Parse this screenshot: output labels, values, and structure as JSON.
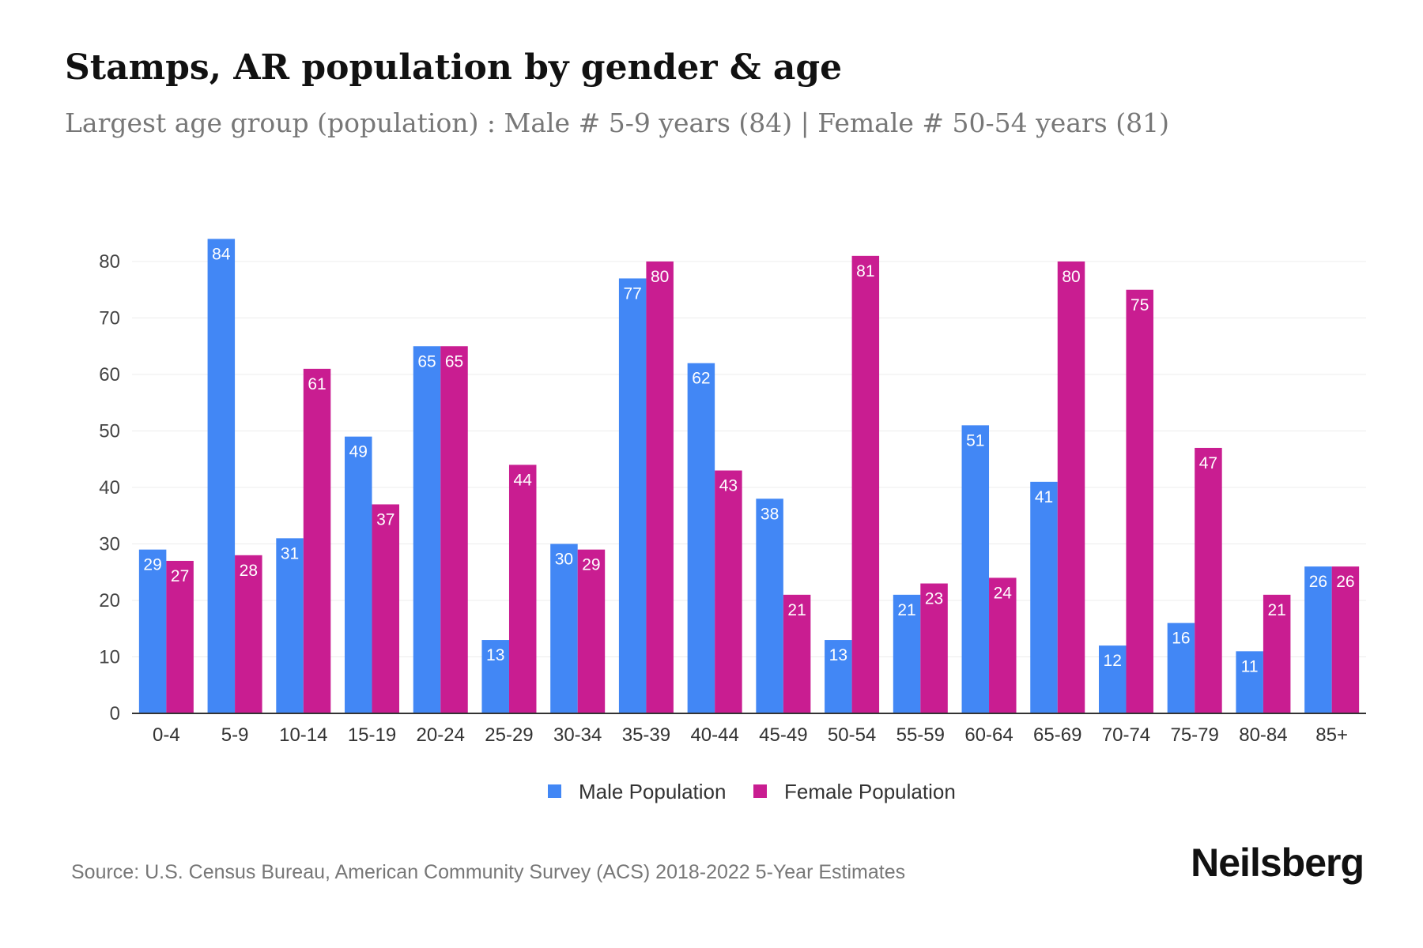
{
  "chart_data": {
    "type": "bar",
    "title": "Stamps, AR population by gender & age",
    "subtitle": "Largest age group (population) : Male # 5-9 years (84) | Female # 50-54 years (81)",
    "categories": [
      "0-4",
      "5-9",
      "10-14",
      "15-19",
      "20-24",
      "25-29",
      "30-34",
      "35-39",
      "40-44",
      "45-49",
      "50-54",
      "55-59",
      "60-64",
      "65-69",
      "70-74",
      "75-79",
      "80-84",
      "85+"
    ],
    "series": [
      {
        "name": "Male Population",
        "color": "#4287f5",
        "values": [
          29,
          84,
          31,
          49,
          65,
          13,
          30,
          77,
          62,
          38,
          13,
          21,
          51,
          41,
          12,
          16,
          11,
          26
        ]
      },
      {
        "name": "Female Population",
        "color": "#c91d91",
        "values": [
          27,
          28,
          61,
          37,
          65,
          44,
          29,
          80,
          43,
          21,
          81,
          23,
          24,
          80,
          75,
          47,
          21,
          26
        ]
      }
    ],
    "ylim": [
      0,
      80
    ],
    "yticks": [
      0,
      10,
      20,
      30,
      40,
      50,
      60,
      70,
      80
    ],
    "xlabel": "",
    "ylabel": "",
    "grid": true,
    "legend_position": "bottom-center"
  },
  "source": "Source: U.S. Census Bureau, American Community Survey (ACS) 2018-2022 5-Year Estimates",
  "brand": "Neilsberg"
}
